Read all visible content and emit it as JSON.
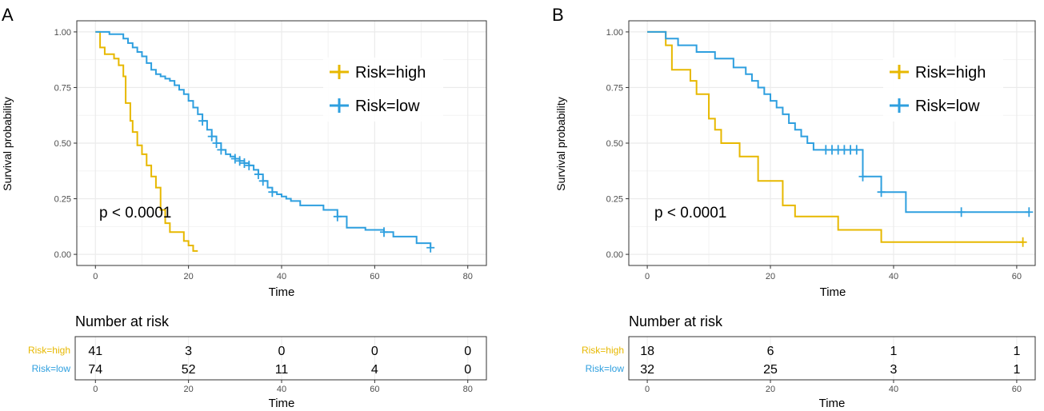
{
  "colors": {
    "high": "#E7B800",
    "low": "#2E9FDF",
    "grid": "#ebebeb",
    "frame": "#333333",
    "tick_text": "#4d4d4d",
    "text": "#000000"
  },
  "chart_data": [
    {
      "type": "line",
      "panel_label": "A",
      "title": "",
      "xlabel": "Time",
      "ylabel": "Survival probability",
      "xlim": [
        -4,
        84
      ],
      "ylim": [
        -0.05,
        1.05
      ],
      "xticks": [
        0,
        20,
        40,
        60,
        80
      ],
      "yticks": [
        0,
        0.25,
        0.5,
        0.75,
        1
      ],
      "ytick_labels": [
        "0.00",
        "0.25",
        "0.50",
        "0.75",
        "1.00"
      ],
      "xtick_labels": [
        "0",
        "20",
        "40",
        "60",
        "80"
      ],
      "grid": true,
      "legend": {
        "entries": [
          "Risk=high",
          "Risk=low"
        ],
        "position": "top-right"
      },
      "pvalue": "p < 0.0001",
      "series": [
        {
          "name": "Risk=high",
          "key": "high",
          "times": [
            0,
            1,
            2,
            4,
            5,
            6,
            6.5,
            7.5,
            8,
            9,
            10,
            11,
            12,
            13,
            14,
            15,
            16,
            19,
            20,
            21,
            22
          ],
          "surv": [
            1.0,
            0.93,
            0.9,
            0.88,
            0.85,
            0.8,
            0.68,
            0.6,
            0.55,
            0.49,
            0.45,
            0.4,
            0.35,
            0.3,
            0.2,
            0.14,
            0.1,
            0.06,
            0.04,
            0.015,
            0.015
          ],
          "censor_times": []
        },
        {
          "name": "Risk=low",
          "key": "low",
          "times": [
            0,
            3,
            6,
            7,
            8,
            9,
            10,
            11,
            12,
            13,
            14,
            15,
            16,
            17,
            18,
            19,
            20,
            21,
            22,
            23,
            24,
            25,
            26,
            27,
            28,
            29,
            30,
            31,
            32,
            33,
            34,
            35,
            36,
            37,
            38,
            39,
            40,
            41,
            42,
            44,
            46,
            49,
            52,
            54,
            58,
            62,
            64,
            69,
            72
          ],
          "surv": [
            1.0,
            0.99,
            0.97,
            0.95,
            0.93,
            0.91,
            0.89,
            0.86,
            0.83,
            0.81,
            0.8,
            0.79,
            0.78,
            0.76,
            0.74,
            0.72,
            0.69,
            0.66,
            0.63,
            0.6,
            0.56,
            0.53,
            0.5,
            0.47,
            0.45,
            0.44,
            0.43,
            0.42,
            0.41,
            0.4,
            0.38,
            0.36,
            0.33,
            0.3,
            0.28,
            0.27,
            0.26,
            0.25,
            0.24,
            0.22,
            0.22,
            0.2,
            0.17,
            0.12,
            0.11,
            0.1,
            0.08,
            0.05,
            0.03
          ],
          "censor_times": [
            23,
            25,
            26,
            27,
            30,
            31,
            32,
            33,
            35,
            36,
            38,
            52,
            62,
            72
          ]
        }
      ],
      "risk_table": {
        "title": "Number at risk",
        "xlabel": "Time",
        "times": [
          0,
          20,
          40,
          60,
          80
        ],
        "rows": [
          {
            "name": "Risk=high",
            "key": "high",
            "counts": [
              "41",
              "3",
              "0",
              "0",
              "0"
            ]
          },
          {
            "name": "Risk=low",
            "key": "low",
            "counts": [
              "74",
              "52",
              "11",
              "4",
              "0"
            ]
          }
        ]
      }
    },
    {
      "type": "line",
      "panel_label": "B",
      "title": "",
      "xlabel": "Time",
      "ylabel": "Survival probability",
      "xlim": [
        -3,
        63
      ],
      "ylim": [
        -0.05,
        1.05
      ],
      "xticks": [
        0,
        20,
        40,
        60
      ],
      "yticks": [
        0,
        0.25,
        0.5,
        0.75,
        1
      ],
      "ytick_labels": [
        "0.00",
        "0.25",
        "0.50",
        "0.75",
        "1.00"
      ],
      "xtick_labels": [
        "0",
        "20",
        "40",
        "60"
      ],
      "grid": true,
      "legend": {
        "entries": [
          "Risk=high",
          "Risk=low"
        ],
        "position": "top-right"
      },
      "pvalue": "p < 0.0001",
      "series": [
        {
          "name": "Risk=high",
          "key": "high",
          "times": [
            0,
            3,
            4,
            7,
            8,
            10,
            11,
            12,
            15,
            18,
            22,
            24,
            31,
            38,
            61
          ],
          "surv": [
            1.0,
            0.94,
            0.83,
            0.78,
            0.72,
            0.61,
            0.56,
            0.5,
            0.44,
            0.33,
            0.22,
            0.17,
            0.11,
            0.055,
            0.055
          ],
          "censor_times": [
            61
          ]
        },
        {
          "name": "Risk=low",
          "key": "low",
          "times": [
            0,
            3,
            5,
            8,
            11,
            14,
            16,
            17,
            18,
            19,
            20,
            21,
            22,
            23,
            24,
            25,
            26,
            27,
            28,
            29,
            35,
            38,
            42,
            62
          ],
          "surv": [
            1.0,
            0.97,
            0.94,
            0.91,
            0.88,
            0.84,
            0.81,
            0.78,
            0.75,
            0.72,
            0.69,
            0.66,
            0.63,
            0.59,
            0.56,
            0.53,
            0.5,
            0.47,
            0.47,
            0.47,
            0.35,
            0.28,
            0.19,
            0.19
          ],
          "censor_times": [
            29,
            30,
            31,
            32,
            33,
            34,
            35,
            38,
            51,
            62
          ]
        }
      ],
      "risk_table": {
        "title": "Number at risk",
        "xlabel": "Time",
        "times": [
          0,
          20,
          40,
          60
        ],
        "rows": [
          {
            "name": "Risk=high",
            "key": "high",
            "counts": [
              "18",
              "6",
              "1",
              "1"
            ]
          },
          {
            "name": "Risk=low",
            "key": "low",
            "counts": [
              "32",
              "25",
              "3",
              "1"
            ]
          }
        ]
      }
    }
  ]
}
